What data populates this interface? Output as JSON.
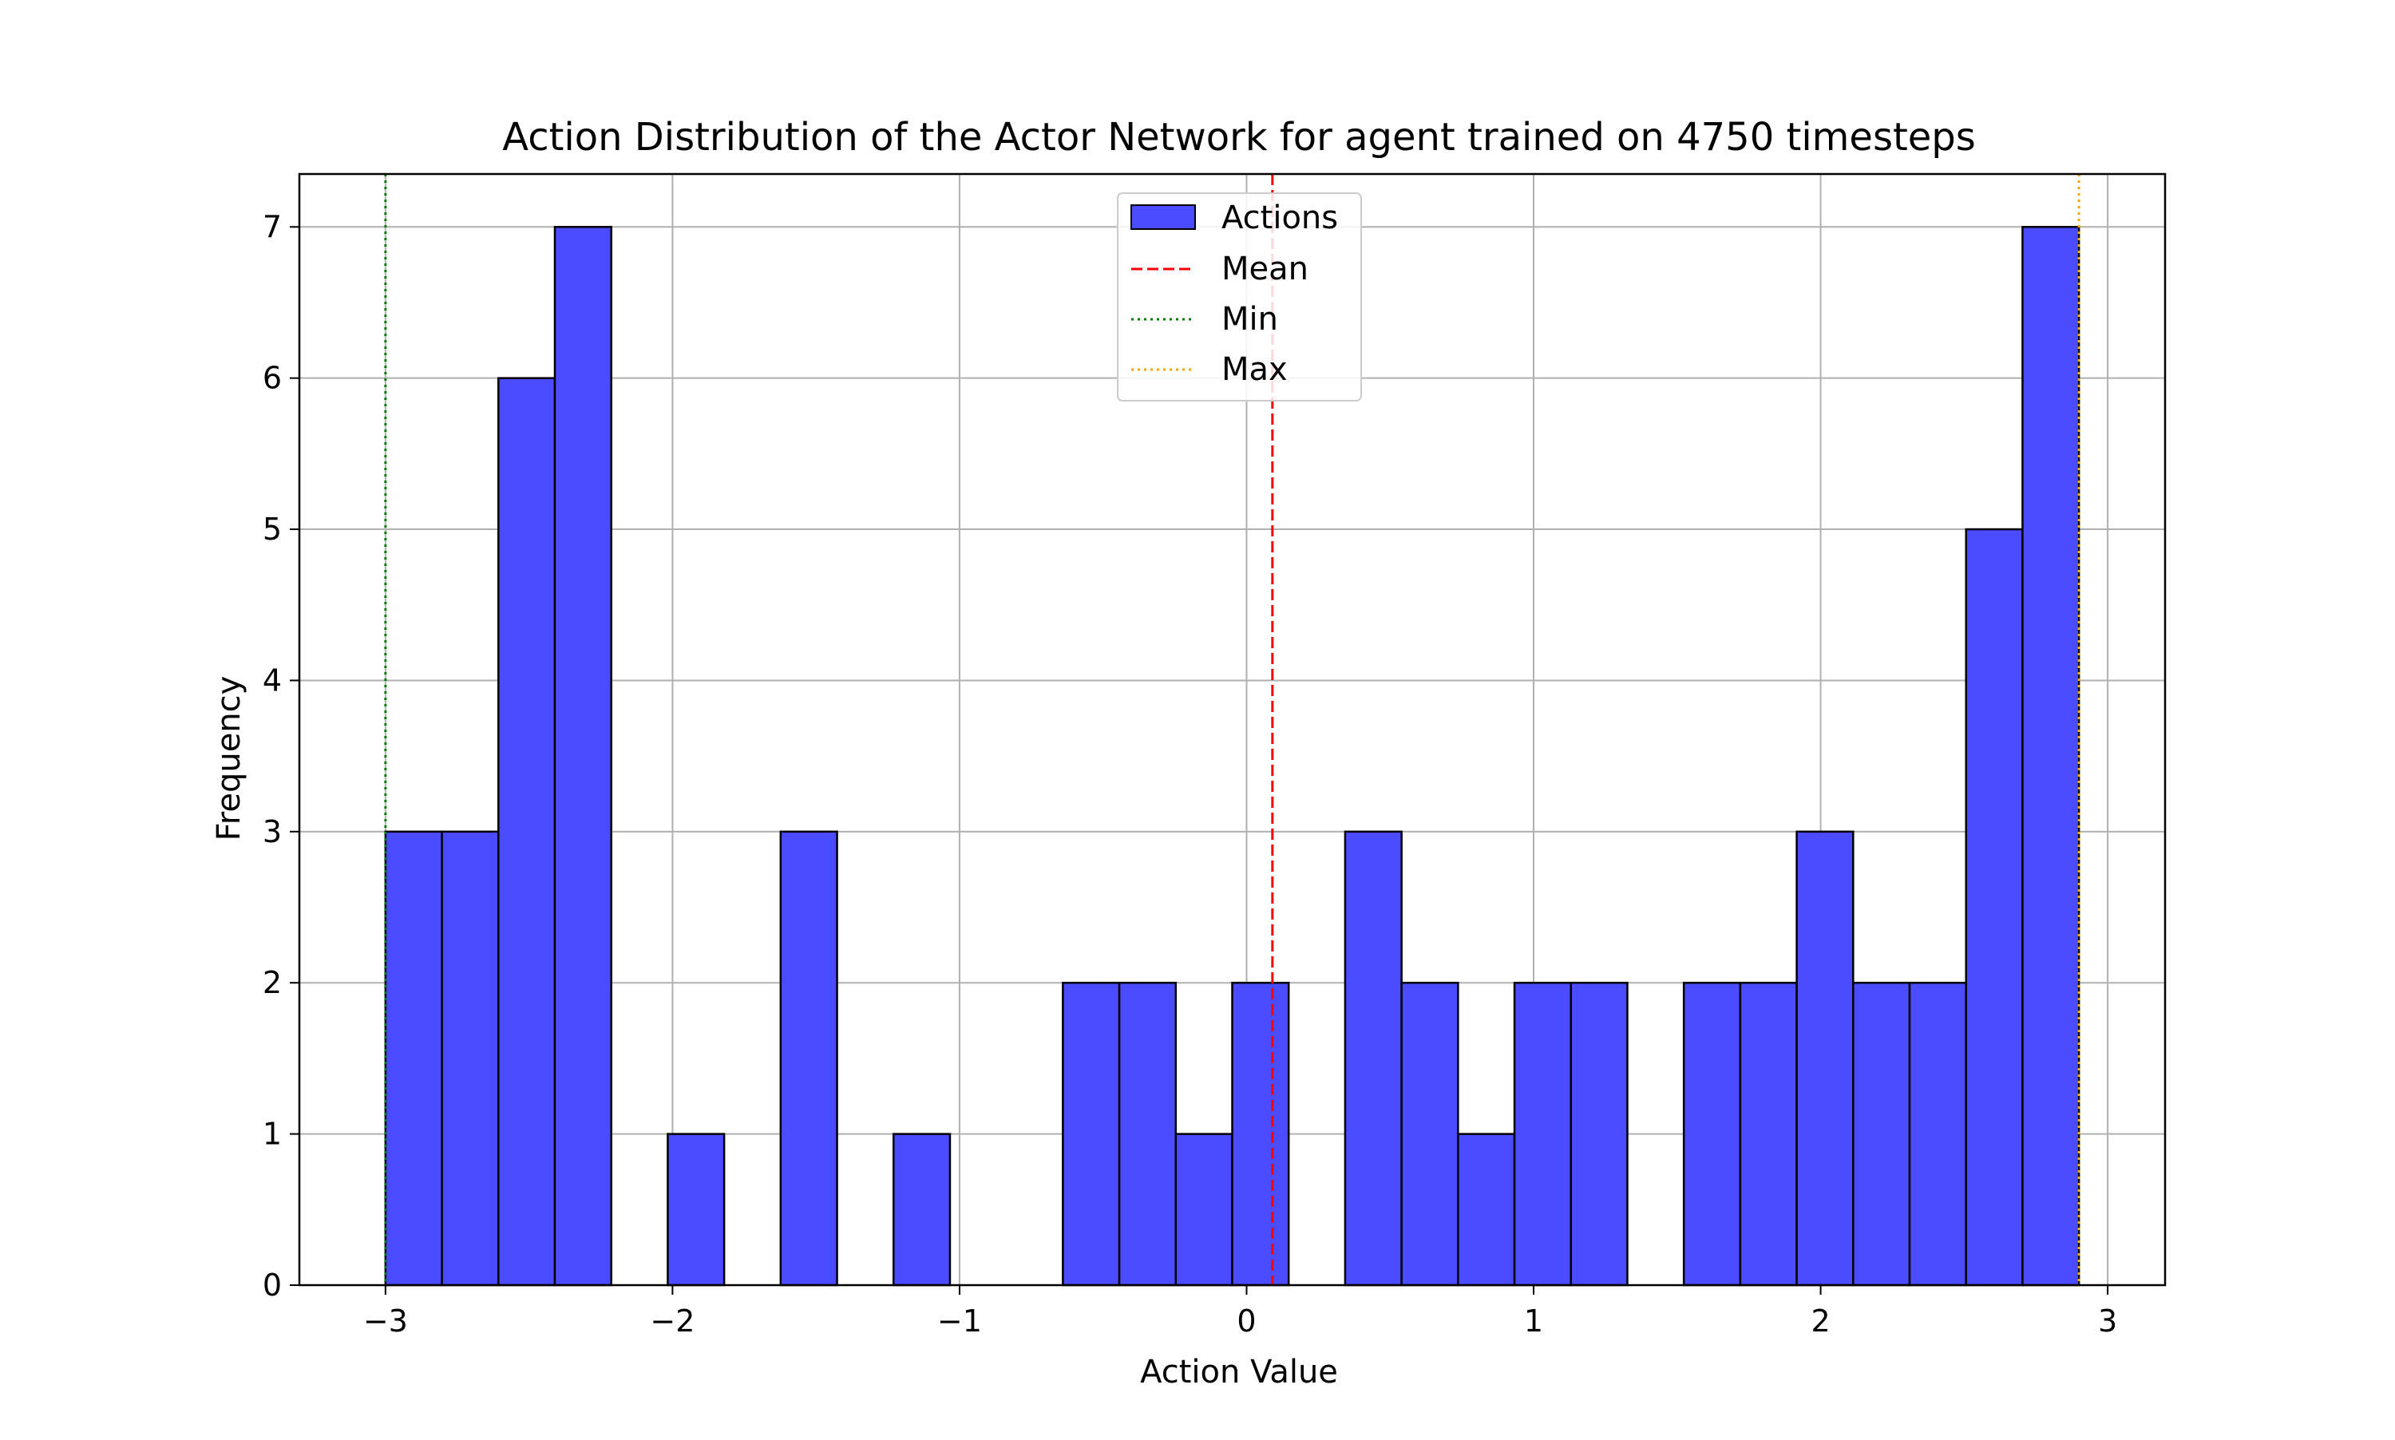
{
  "chart_data": {
    "type": "bar",
    "title": "Action Distribution of the Actor Network for agent trained on 4750 timesteps",
    "xlabel": "Action Value",
    "ylabel": "Frequency",
    "xlim": [
      -3.3,
      3.2
    ],
    "ylim": [
      0,
      7.35
    ],
    "xticks": [
      -3,
      -2,
      -1,
      0,
      1,
      2,
      3
    ],
    "yticks": [
      0,
      1,
      2,
      3,
      4,
      5,
      6,
      7
    ],
    "grid": true,
    "legend_position": "upper center",
    "bins": {
      "start": -3.0,
      "end": 2.9,
      "counts": [
        3,
        3,
        6,
        7,
        0,
        1,
        0,
        3,
        0,
        1,
        0,
        0,
        2,
        2,
        1,
        2,
        0,
        3,
        2,
        1,
        2,
        2,
        0,
        2,
        2,
        3,
        2,
        2,
        5,
        7
      ]
    },
    "mean_line": 0.09,
    "min_line": -3.0,
    "max_line": 2.9,
    "series": [
      {
        "name": "Actions",
        "color": "#4b4bff",
        "edge_color": "#000000"
      },
      {
        "name": "Mean",
        "color": "#ff0000",
        "style": "dashed"
      },
      {
        "name": "Min",
        "color": "#008000",
        "style": "dotted"
      },
      {
        "name": "Max",
        "color": "#ffa500",
        "style": "dotted"
      }
    ]
  }
}
